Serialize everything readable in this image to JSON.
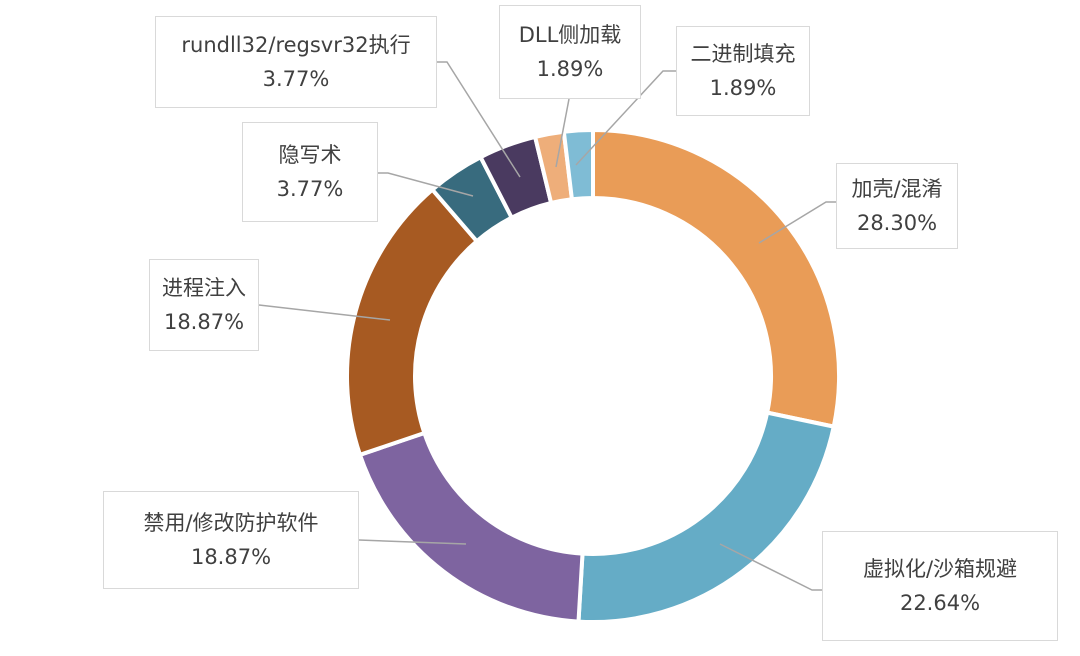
{
  "chart_data": {
    "type": "pie",
    "variant": "donut",
    "title": "",
    "slices": [
      {
        "label": "加壳/混淆",
        "value": 28.3,
        "display": "28.30%",
        "color": "#E99C57"
      },
      {
        "label": "虚拟化/沙箱规避",
        "value": 22.64,
        "display": "22.64%",
        "color": "#65ACC6"
      },
      {
        "label": "禁用/修改防护软件",
        "value": 18.87,
        "display": "18.87%",
        "color": "#7E64A0"
      },
      {
        "label": "进程注入",
        "value": 18.87,
        "display": "18.87%",
        "color": "#A75A22"
      },
      {
        "label": "隐写术",
        "value": 3.77,
        "display": "3.77%",
        "color": "#386B7E"
      },
      {
        "label": "rundll32/regsvr32执行",
        "value": 3.77,
        "display": "3.77%",
        "color": "#4A3A60"
      },
      {
        "label": "DLL侧加载",
        "value": 1.89,
        "display": "1.89%",
        "color": "#EEAE7A"
      },
      {
        "label": "二进制填充",
        "value": 1.89,
        "display": "1.89%",
        "color": "#7FBCD5"
      }
    ]
  }
}
